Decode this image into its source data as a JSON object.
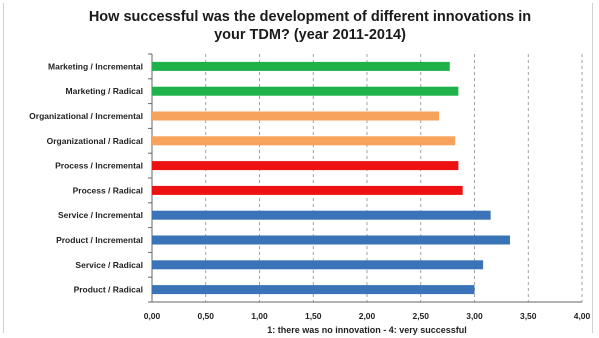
{
  "chart_data": {
    "type": "bar",
    "orientation": "horizontal",
    "title_lines": [
      "How successful was the development of different innovations in",
      "your TDM?  (year 2011-2014)"
    ],
    "xlabel": "1: there was no innovation - 4: very successful",
    "ylabel": "",
    "xlim": [
      0,
      4
    ],
    "x_ticks": [
      "0,00",
      "0,50",
      "1,00",
      "1,50",
      "2,00",
      "2,50",
      "3,00",
      "3,50",
      "4,00"
    ],
    "grid": "vertical dashed",
    "legend": "none",
    "categories": [
      "Marketing / Incremental",
      "Marketing / Radical",
      "Organizational / Incremental",
      "Organizational / Radical",
      "Process / Incremental",
      "Process / Radical",
      "Service / Incremental",
      "Product / Incremental",
      "Service / Radical",
      "Product / Radical"
    ],
    "values": [
      2.77,
      2.85,
      2.67,
      2.82,
      2.85,
      2.89,
      3.15,
      3.33,
      3.08,
      3.0
    ],
    "bar_colors": [
      "#1fb24a",
      "#1fb24a",
      "#f7a35c",
      "#f7a35c",
      "#ee1111",
      "#ee1111",
      "#3a73b8",
      "#3a73b8",
      "#3a73b8",
      "#3a73b8"
    ]
  }
}
